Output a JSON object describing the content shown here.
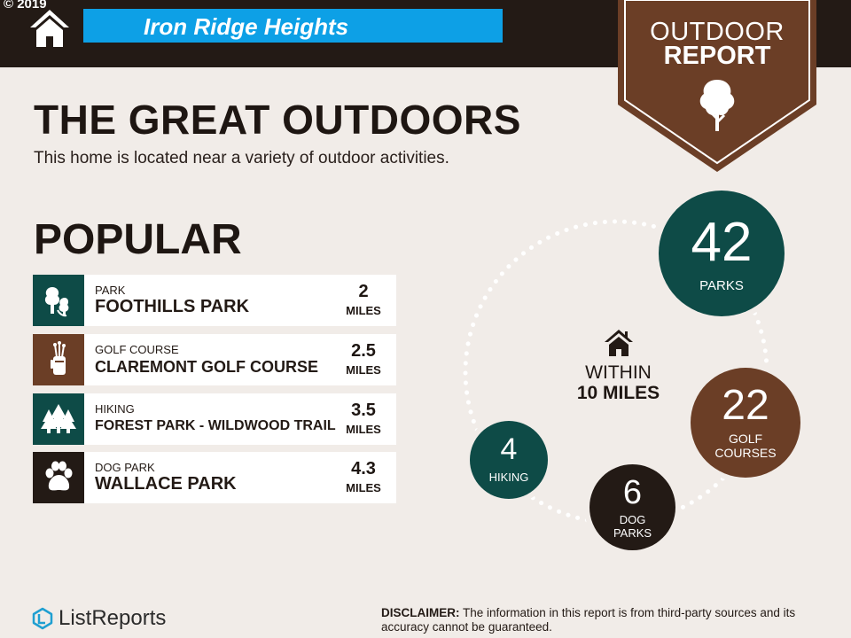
{
  "header": {
    "copyright": "© 2019",
    "title": "Iron Ridge Heights",
    "badge_line1": "OUTDOOR",
    "badge_line2": "REPORT"
  },
  "main": {
    "heading": "THE GREAT OUTDOORS",
    "subtitle": "This home is located near a variety of outdoor activities.",
    "popular_heading": "POPULAR"
  },
  "popular": [
    {
      "category": "PARK",
      "name": "FOOTHILLS PARK",
      "distance": "2",
      "unit": "MILES",
      "icon": "park-icon",
      "color": "#0e4b47"
    },
    {
      "category": "GOLF COURSE",
      "name": "CLAREMONT GOLF COURSE",
      "distance": "2.5",
      "unit": "MILES",
      "icon": "golf-bag-icon",
      "color": "#6b3e26"
    },
    {
      "category": "HIKING",
      "name": "FOREST PARK - WILDWOOD TRAIL",
      "distance": "3.5",
      "unit": "MILES",
      "icon": "pine-trees-icon",
      "color": "#0e4b47"
    },
    {
      "category": "DOG PARK",
      "name": "WALLACE PARK",
      "distance": "4.3",
      "unit": "MILES",
      "icon": "paw-icon",
      "color": "#231a15"
    }
  ],
  "stats": {
    "within_line1": "WITHIN",
    "within_line2": "10 MILES",
    "parks": {
      "count": "42",
      "label": "PARKS",
      "color": "#0e4b47"
    },
    "golf": {
      "count": "22",
      "label_line1": "GOLF",
      "label_line2": "COURSES",
      "color": "#6b3e26"
    },
    "dog": {
      "count": "6",
      "label_line1": "DOG",
      "label_line2": "PARKS",
      "color": "#231a15"
    },
    "hiking": {
      "count": "4",
      "label": "HIKING",
      "color": "#0e4b47"
    }
  },
  "footer": {
    "logo": "ListReports",
    "disclaimer_label": "DISCLAIMER:",
    "disclaimer_text": " The information in this report is from third-party sources and its accuracy cannot be guaranteed."
  },
  "colors": {
    "header_bg": "#231a15",
    "title_box": "#0da0e6",
    "badge_brown": "#6b3e26",
    "background": "#f1ece8"
  }
}
